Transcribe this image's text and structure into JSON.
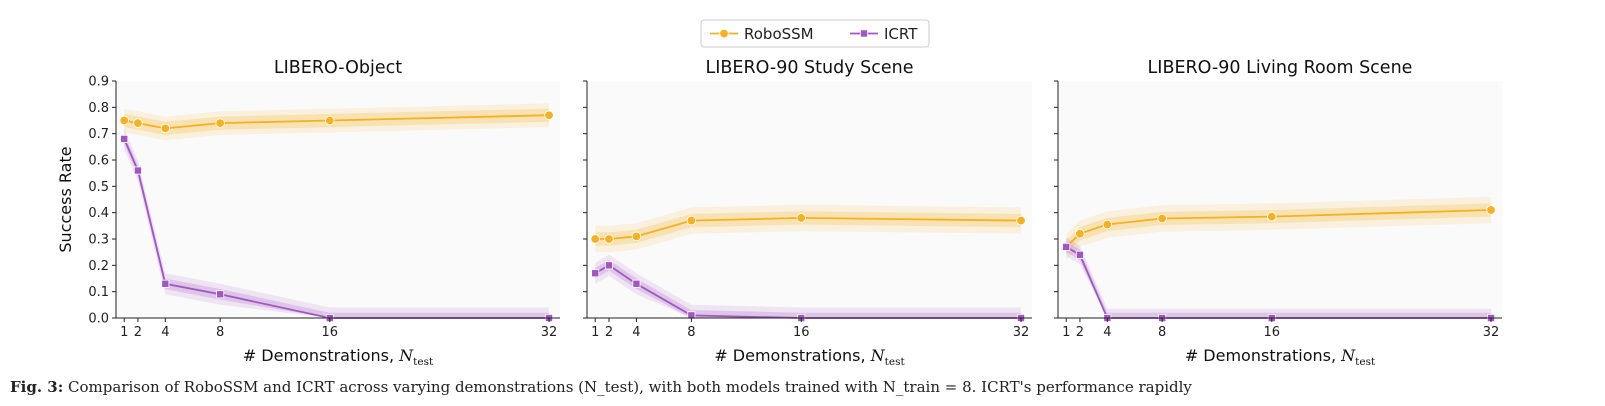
{
  "legend": {
    "placement": "top-center",
    "entries": [
      {
        "name": "RoboSSM",
        "color": "#f5b120",
        "marker": "circle"
      },
      {
        "name": "ICRT",
        "color": "#a256c4",
        "marker": "square"
      }
    ]
  },
  "caption": {
    "label": "Fig. 3:",
    "text": "Comparison of RoboSSM and ICRT across varying demonstrations (N_test), with both models trained with N_train = 8. ICRT's performance rapidly"
  },
  "chart_data": [
    {
      "type": "line",
      "title": "LIBERO-Object",
      "xlabel": "# Demonstrations, N_test",
      "ylabel": "Success Rate",
      "x": [
        1,
        2,
        4,
        8,
        16,
        32
      ],
      "xticks": [
        "1",
        "2",
        "4",
        "8",
        "16",
        "32"
      ],
      "ylim": [
        0,
        0.9
      ],
      "yticks": [
        "0.0",
        "0.1",
        "0.2",
        "0.3",
        "0.4",
        "0.5",
        "0.6",
        "0.7",
        "0.8",
        "0.9"
      ],
      "grid": false,
      "series": [
        {
          "name": "RoboSSM",
          "values": [
            0.75,
            0.74,
            0.72,
            0.74,
            0.75,
            0.77
          ],
          "band_inner": 0.025,
          "band_outer": 0.045
        },
        {
          "name": "ICRT",
          "values": [
            0.68,
            0.56,
            0.13,
            0.09,
            0.0,
            0.0
          ],
          "band_inner": 0.02,
          "band_outer": 0.04
        }
      ]
    },
    {
      "type": "line",
      "title": "LIBERO-90 Study Scene",
      "xlabel": "# Demonstrations, N_test",
      "ylabel": "",
      "x": [
        1,
        2,
        4,
        8,
        16,
        32
      ],
      "xticks": [
        "1",
        "2",
        "4",
        "8",
        "16",
        "32"
      ],
      "ylim": [
        0,
        0.9
      ],
      "yticks": [],
      "grid": false,
      "series": [
        {
          "name": "RoboSSM",
          "values": [
            0.3,
            0.3,
            0.31,
            0.37,
            0.38,
            0.37
          ],
          "band_inner": 0.025,
          "band_outer": 0.05
        },
        {
          "name": "ICRT",
          "values": [
            0.17,
            0.2,
            0.13,
            0.01,
            0.0,
            0.0
          ],
          "band_inner": 0.02,
          "band_outer": 0.04
        }
      ]
    },
    {
      "type": "line",
      "title": "LIBERO-90 Living Room Scene",
      "xlabel": "# Demonstrations, N_test",
      "ylabel": "",
      "x": [
        1,
        2,
        4,
        8,
        16,
        32
      ],
      "xticks": [
        "1",
        "2",
        "4",
        "8",
        "16",
        "32"
      ],
      "ylim": [
        0,
        0.9
      ],
      "yticks": [],
      "grid": false,
      "series": [
        {
          "name": "RoboSSM",
          "values": [
            0.27,
            0.32,
            0.355,
            0.378,
            0.385,
            0.41
          ],
          "band_inner": 0.025,
          "band_outer": 0.05
        },
        {
          "name": "ICRT",
          "values": [
            0.27,
            0.24,
            0.0,
            0.0,
            0.0,
            0.0
          ],
          "band_inner": 0.02,
          "band_outer": 0.035
        }
      ]
    }
  ]
}
